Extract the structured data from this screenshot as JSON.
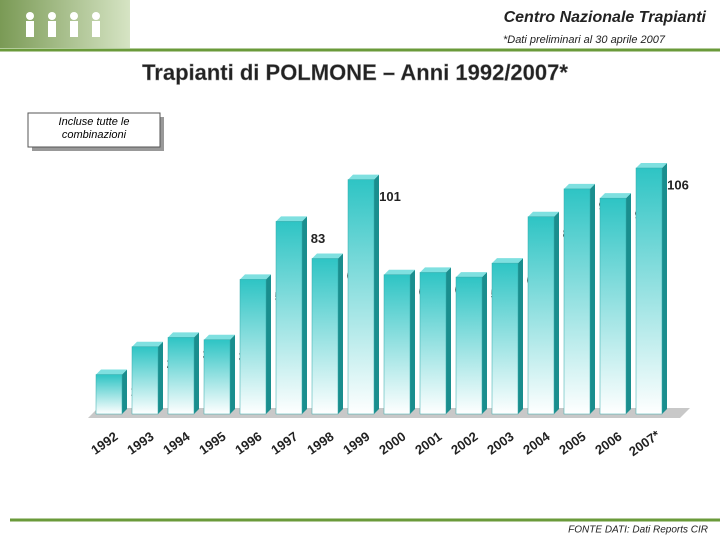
{
  "header": {
    "org": "Centro Nazionale Trapianti",
    "note": "*Dati preliminari al 30 aprile 2007"
  },
  "chart_data": {
    "type": "bar",
    "title": "Trapianti di POLMONE – Anni 1992/2007*",
    "annotation": "Incluse tutte le combinazioni",
    "categories": [
      "1992",
      "1993",
      "1994",
      "1995",
      "1996",
      "1997",
      "1998",
      "1999",
      "2000",
      "2001",
      "2002",
      "2003",
      "2004",
      "2005",
      "2006",
      "2007*"
    ],
    "values": [
      17,
      29,
      33,
      32,
      58,
      83,
      67,
      101,
      60,
      61,
      59,
      65,
      85,
      97,
      93,
      106
    ],
    "color": "#2ec4c4"
  },
  "footer": {
    "source": "FONTE DATI: Dati Reports CIR"
  }
}
